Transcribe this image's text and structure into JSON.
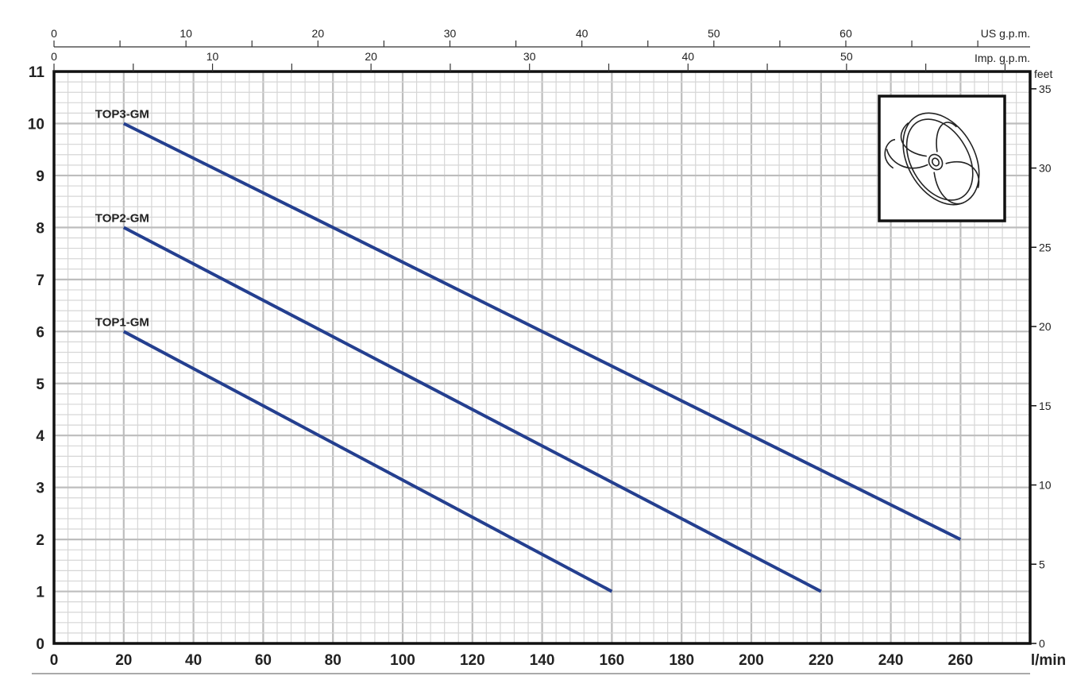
{
  "chart_data": {
    "type": "line",
    "title": "",
    "xlabel": "l/min",
    "ylabel": "",
    "xlim": [
      0,
      280
    ],
    "ylim": [
      0,
      11
    ],
    "grid": true,
    "x_ticks": [
      0,
      20,
      40,
      60,
      80,
      100,
      120,
      140,
      160,
      180,
      200,
      220,
      240,
      260
    ],
    "y_ticks": [
      0,
      1,
      2,
      3,
      4,
      5,
      6,
      7,
      8,
      9,
      10,
      11
    ],
    "secondary_axes": {
      "right": {
        "label": "feet",
        "ticks": [
          0,
          5,
          10,
          15,
          20,
          25,
          30,
          35
        ]
      },
      "top_us": {
        "label": "US g.p.m.",
        "ticks": [
          0,
          10,
          20,
          30,
          40,
          50,
          60
        ]
      },
      "top_imp": {
        "label": "Imp. g.p.m.",
        "ticks": [
          0,
          10,
          20,
          30,
          40,
          50
        ]
      }
    },
    "line_color": "#243f8f",
    "series": [
      {
        "name": "TOP3-GM",
        "x": [
          20,
          260
        ],
        "y": [
          10,
          2
        ]
      },
      {
        "name": "TOP2-GM",
        "x": [
          20,
          220
        ],
        "y": [
          8,
          1
        ]
      },
      {
        "name": "TOP1-GM",
        "x": [
          20,
          160
        ],
        "y": [
          6,
          1
        ]
      }
    ],
    "inset_icon": "impeller-icon"
  }
}
